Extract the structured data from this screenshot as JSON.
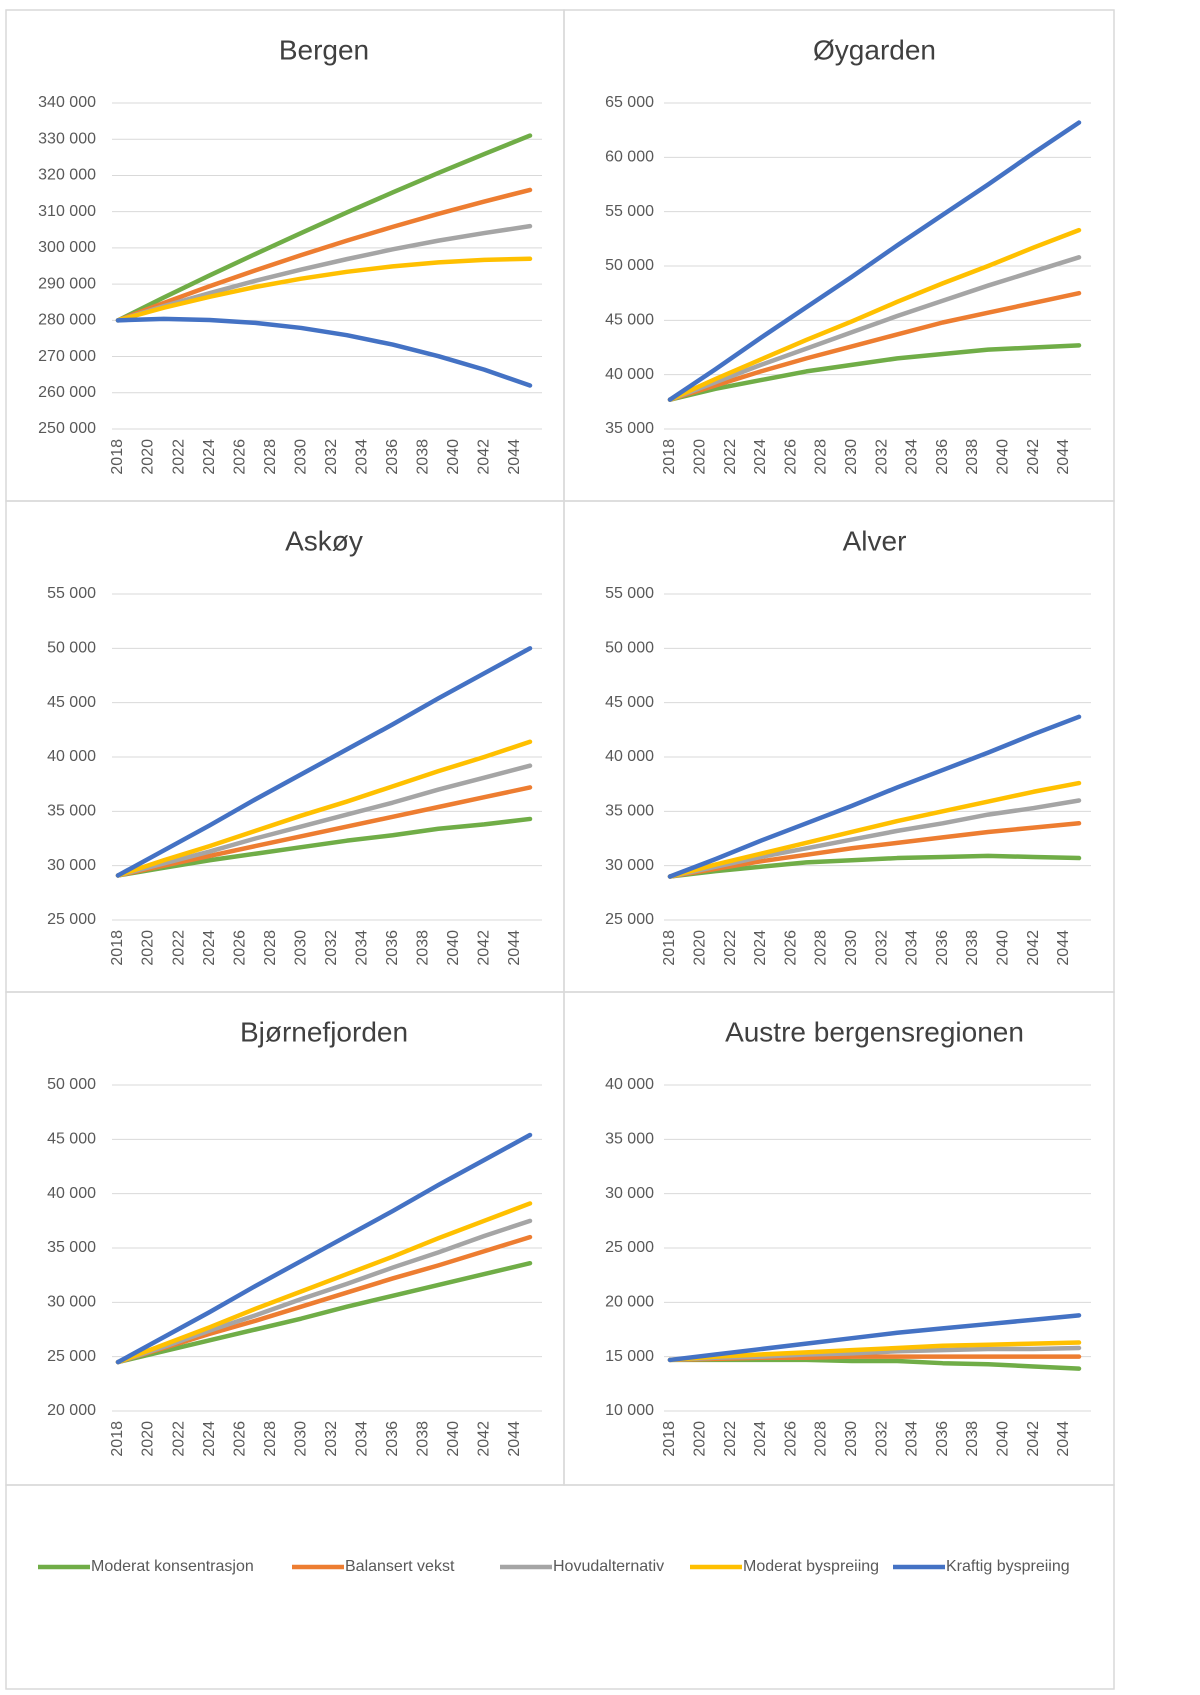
{
  "chart_data": [
    {
      "type": "line",
      "title": "Bergen",
      "x": [
        2018,
        2021,
        2024,
        2027,
        2030,
        2033,
        2036,
        2039,
        2042,
        2045
      ],
      "xlim": [
        2018,
        2045
      ],
      "xticks": [
        2018,
        2020,
        2022,
        2024,
        2026,
        2028,
        2030,
        2032,
        2034,
        2036,
        2038,
        2040,
        2042,
        2044
      ],
      "ylim": [
        250000,
        340000
      ],
      "yticks": [
        {
          "value": 250000,
          "label": "250 000"
        },
        {
          "value": 260000,
          "label": "260 000"
        },
        {
          "value": 270000,
          "label": "270 000"
        },
        {
          "value": 280000,
          "label": "280 000"
        },
        {
          "value": 290000,
          "label": "290 000"
        },
        {
          "value": 300000,
          "label": "300 000"
        },
        {
          "value": 310000,
          "label": "310 000"
        },
        {
          "value": 320000,
          "label": "320 000"
        },
        {
          "value": 330000,
          "label": "330 000"
        },
        {
          "value": 340000,
          "label": "340 000"
        }
      ],
      "grid": true,
      "series": [
        {
          "name": "Moderat konsentrasjon",
          "color": "#70ad47",
          "values": [
            280000,
            286300,
            292400,
            298300,
            304100,
            309800,
            315300,
            320700,
            325900,
            331000
          ]
        },
        {
          "name": "Balansert vekst",
          "color": "#ed7d31",
          "values": [
            280000,
            284800,
            289400,
            293800,
            298000,
            302000,
            305800,
            309400,
            312800,
            316000
          ]
        },
        {
          "name": "Hovudalternativ",
          "color": "#a5a5a5",
          "values": [
            280000,
            283900,
            287500,
            290900,
            294000,
            296900,
            299600,
            302000,
            304100,
            306000
          ]
        },
        {
          "name": "Moderat byspreiing",
          "color": "#ffc000",
          "values": [
            280000,
            283500,
            286500,
            289200,
            291500,
            293400,
            294900,
            296000,
            296700,
            297000
          ]
        },
        {
          "name": "Kraftig byspreiing",
          "color": "#4472c4",
          "values": [
            280000,
            280400,
            280100,
            279300,
            277900,
            275900,
            273300,
            270100,
            266400,
            262000
          ]
        }
      ]
    },
    {
      "type": "line",
      "title": "Øygarden",
      "x": [
        2018,
        2021,
        2024,
        2027,
        2030,
        2033,
        2036,
        2039,
        2042,
        2045
      ],
      "xlim": [
        2018,
        2045
      ],
      "xticks": [
        2018,
        2020,
        2022,
        2024,
        2026,
        2028,
        2030,
        2032,
        2034,
        2036,
        2038,
        2040,
        2042,
        2044
      ],
      "ylim": [
        35000,
        65000
      ],
      "yticks": [
        {
          "value": 35000,
          "label": "35 000"
        },
        {
          "value": 40000,
          "label": "40 000"
        },
        {
          "value": 45000,
          "label": "45 000"
        },
        {
          "value": 50000,
          "label": "50 000"
        },
        {
          "value": 55000,
          "label": "55 000"
        },
        {
          "value": 60000,
          "label": "60 000"
        },
        {
          "value": 65000,
          "label": "65 000"
        }
      ],
      "grid": true,
      "series": [
        {
          "name": "Moderat konsentrasjon",
          "color": "#70ad47",
          "values": [
            37700,
            38700,
            39500,
            40300,
            40900,
            41500,
            41900,
            42300,
            42500,
            42700
          ]
        },
        {
          "name": "Balansert vekst",
          "color": "#ed7d31",
          "values": [
            37700,
            39000,
            40300,
            41500,
            42600,
            43700,
            44800,
            45700,
            46600,
            47500
          ]
        },
        {
          "name": "Hovudalternativ",
          "color": "#a5a5a5",
          "values": [
            37700,
            39300,
            40900,
            42400,
            43900,
            45400,
            46800,
            48200,
            49500,
            50800
          ]
        },
        {
          "name": "Moderat byspreiing",
          "color": "#ffc000",
          "values": [
            37700,
            39600,
            41400,
            43200,
            44900,
            46700,
            48400,
            50000,
            51700,
            53300
          ]
        },
        {
          "name": "Kraftig byspreiing",
          "color": "#4472c4",
          "values": [
            37700,
            40500,
            43400,
            46200,
            49000,
            51900,
            54700,
            57500,
            60400,
            63200
          ]
        }
      ]
    },
    {
      "type": "line",
      "title": "Askøy",
      "x": [
        2018,
        2021,
        2024,
        2027,
        2030,
        2033,
        2036,
        2039,
        2042,
        2045
      ],
      "xlim": [
        2018,
        2045
      ],
      "xticks": [
        2018,
        2020,
        2022,
        2024,
        2026,
        2028,
        2030,
        2032,
        2034,
        2036,
        2038,
        2040,
        2042,
        2044
      ],
      "ylim": [
        25000,
        55000
      ],
      "yticks": [
        {
          "value": 25000,
          "label": "25 000"
        },
        {
          "value": 30000,
          "label": "30 000"
        },
        {
          "value": 35000,
          "label": "35 000"
        },
        {
          "value": 40000,
          "label": "40 000"
        },
        {
          "value": 45000,
          "label": "45 000"
        },
        {
          "value": 50000,
          "label": "50 000"
        },
        {
          "value": 55000,
          "label": "55 000"
        }
      ],
      "grid": true,
      "series": [
        {
          "name": "Moderat konsentrasjon",
          "color": "#70ad47",
          "values": [
            29100,
            29800,
            30500,
            31100,
            31700,
            32300,
            32800,
            33400,
            33800,
            34300
          ]
        },
        {
          "name": "Balansert vekst",
          "color": "#ed7d31",
          "values": [
            29100,
            30000,
            30900,
            31800,
            32700,
            33600,
            34500,
            35400,
            36300,
            37200
          ]
        },
        {
          "name": "Hovudalternativ",
          "color": "#a5a5a5",
          "values": [
            29100,
            30200,
            31300,
            32500,
            33600,
            34700,
            35800,
            37000,
            38100,
            39200
          ]
        },
        {
          "name": "Moderat byspreiing",
          "color": "#ffc000",
          "values": [
            29100,
            30500,
            31800,
            33200,
            34600,
            35900,
            37300,
            38700,
            40000,
            41400
          ]
        },
        {
          "name": "Kraftig byspreiing",
          "color": "#4472c4",
          "values": [
            29100,
            31400,
            33700,
            36100,
            38400,
            40700,
            43000,
            45400,
            47700,
            50000
          ]
        }
      ]
    },
    {
      "type": "line",
      "title": "Alver",
      "x": [
        2018,
        2021,
        2024,
        2027,
        2030,
        2033,
        2036,
        2039,
        2042,
        2045
      ],
      "xlim": [
        2018,
        2045
      ],
      "xticks": [
        2018,
        2020,
        2022,
        2024,
        2026,
        2028,
        2030,
        2032,
        2034,
        2036,
        2038,
        2040,
        2042,
        2044
      ],
      "ylim": [
        25000,
        55000
      ],
      "yticks": [
        {
          "value": 25000,
          "label": "25 000"
        },
        {
          "value": 30000,
          "label": "30 000"
        },
        {
          "value": 35000,
          "label": "35 000"
        },
        {
          "value": 40000,
          "label": "40 000"
        },
        {
          "value": 45000,
          "label": "45 000"
        },
        {
          "value": 50000,
          "label": "50 000"
        },
        {
          "value": 55000,
          "label": "55 000"
        }
      ],
      "grid": true,
      "series": [
        {
          "name": "Moderat konsentrasjon",
          "color": "#70ad47",
          "values": [
            29000,
            29500,
            29900,
            30300,
            30500,
            30700,
            30800,
            30900,
            30800,
            30700
          ]
        },
        {
          "name": "Balansert vekst",
          "color": "#ed7d31",
          "values": [
            29000,
            29700,
            30400,
            31000,
            31600,
            32100,
            32600,
            33100,
            33500,
            33900
          ]
        },
        {
          "name": "Hovudalternativ",
          "color": "#a5a5a5",
          "values": [
            29000,
            29900,
            30800,
            31600,
            32400,
            33200,
            33900,
            34700,
            35300,
            36000
          ]
        },
        {
          "name": "Moderat byspreiing",
          "color": "#ffc000",
          "values": [
            29000,
            30100,
            31100,
            32100,
            33100,
            34100,
            35000,
            35900,
            36800,
            37600
          ]
        },
        {
          "name": "Kraftig byspreiing",
          "color": "#4472c4",
          "values": [
            29000,
            30600,
            32300,
            33900,
            35500,
            37200,
            38800,
            40400,
            42100,
            43700
          ]
        }
      ]
    },
    {
      "type": "line",
      "title": "Bjørnefjorden",
      "x": [
        2018,
        2021,
        2024,
        2027,
        2030,
        2033,
        2036,
        2039,
        2042,
        2045
      ],
      "xlim": [
        2018,
        2045
      ],
      "xticks": [
        2018,
        2020,
        2022,
        2024,
        2026,
        2028,
        2030,
        2032,
        2034,
        2036,
        2038,
        2040,
        2042,
        2044
      ],
      "ylim": [
        20000,
        50000
      ],
      "yticks": [
        {
          "value": 20000,
          "label": "20 000"
        },
        {
          "value": 25000,
          "label": "25 000"
        },
        {
          "value": 30000,
          "label": "30 000"
        },
        {
          "value": 35000,
          "label": "35 000"
        },
        {
          "value": 40000,
          "label": "40 000"
        },
        {
          "value": 45000,
          "label": "45 000"
        },
        {
          "value": 50000,
          "label": "50 000"
        }
      ],
      "grid": true,
      "series": [
        {
          "name": "Moderat konsentrasjon",
          "color": "#70ad47",
          "values": [
            24500,
            25500,
            26500,
            27500,
            28500,
            29600,
            30600,
            31600,
            32600,
            33600
          ]
        },
        {
          "name": "Balansert vekst",
          "color": "#ed7d31",
          "values": [
            24500,
            25800,
            27100,
            28300,
            29600,
            30900,
            32200,
            33400,
            34700,
            36000
          ]
        },
        {
          "name": "Hovudalternativ",
          "color": "#a5a5a5",
          "values": [
            24500,
            25900,
            27400,
            28800,
            30300,
            31700,
            33200,
            34600,
            36100,
            37500
          ]
        },
        {
          "name": "Moderat byspreiing",
          "color": "#ffc000",
          "values": [
            24500,
            26100,
            27700,
            29400,
            31000,
            32600,
            34200,
            35900,
            37500,
            39100
          ]
        },
        {
          "name": "Kraftig byspreiing",
          "color": "#4472c4",
          "values": [
            24500,
            26800,
            29100,
            31500,
            33800,
            36100,
            38400,
            40800,
            43100,
            45400
          ]
        }
      ]
    },
    {
      "type": "line",
      "title": "Austre bergensregionen",
      "x": [
        2018,
        2021,
        2024,
        2027,
        2030,
        2033,
        2036,
        2039,
        2042,
        2045
      ],
      "xlim": [
        2018,
        2045
      ],
      "xticks": [
        2018,
        2020,
        2022,
        2024,
        2026,
        2028,
        2030,
        2032,
        2034,
        2036,
        2038,
        2040,
        2042,
        2044
      ],
      "ylim": [
        10000,
        40000
      ],
      "yticks": [
        {
          "value": 10000,
          "label": "10 000"
        },
        {
          "value": 15000,
          "label": "15 000"
        },
        {
          "value": 20000,
          "label": "20 000"
        },
        {
          "value": 25000,
          "label": "25 000"
        },
        {
          "value": 30000,
          "label": "30 000"
        },
        {
          "value": 35000,
          "label": "35 000"
        },
        {
          "value": 40000,
          "label": "40 000"
        }
      ],
      "grid": true,
      "series": [
        {
          "name": "Moderat konsentrasjon",
          "color": "#70ad47",
          "values": [
            14700,
            14700,
            14700,
            14700,
            14600,
            14600,
            14400,
            14300,
            14100,
            13900
          ]
        },
        {
          "name": "Balansert vekst",
          "color": "#ed7d31",
          "values": [
            14700,
            14800,
            14900,
            14900,
            15000,
            15000,
            15000,
            15000,
            15000,
            15000
          ]
        },
        {
          "name": "Hovudalternativ",
          "color": "#a5a5a5",
          "values": [
            14700,
            14900,
            15000,
            15200,
            15300,
            15500,
            15600,
            15700,
            15700,
            15800
          ]
        },
        {
          "name": "Moderat byspreiing",
          "color": "#ffc000",
          "values": [
            14700,
            15000,
            15200,
            15400,
            15600,
            15800,
            16000,
            16100,
            16200,
            16300
          ]
        },
        {
          "name": "Kraftig byspreiing",
          "color": "#4472c4",
          "values": [
            14700,
            15200,
            15700,
            16200,
            16700,
            17200,
            17600,
            18000,
            18400,
            18800
          ]
        }
      ]
    }
  ]
}
